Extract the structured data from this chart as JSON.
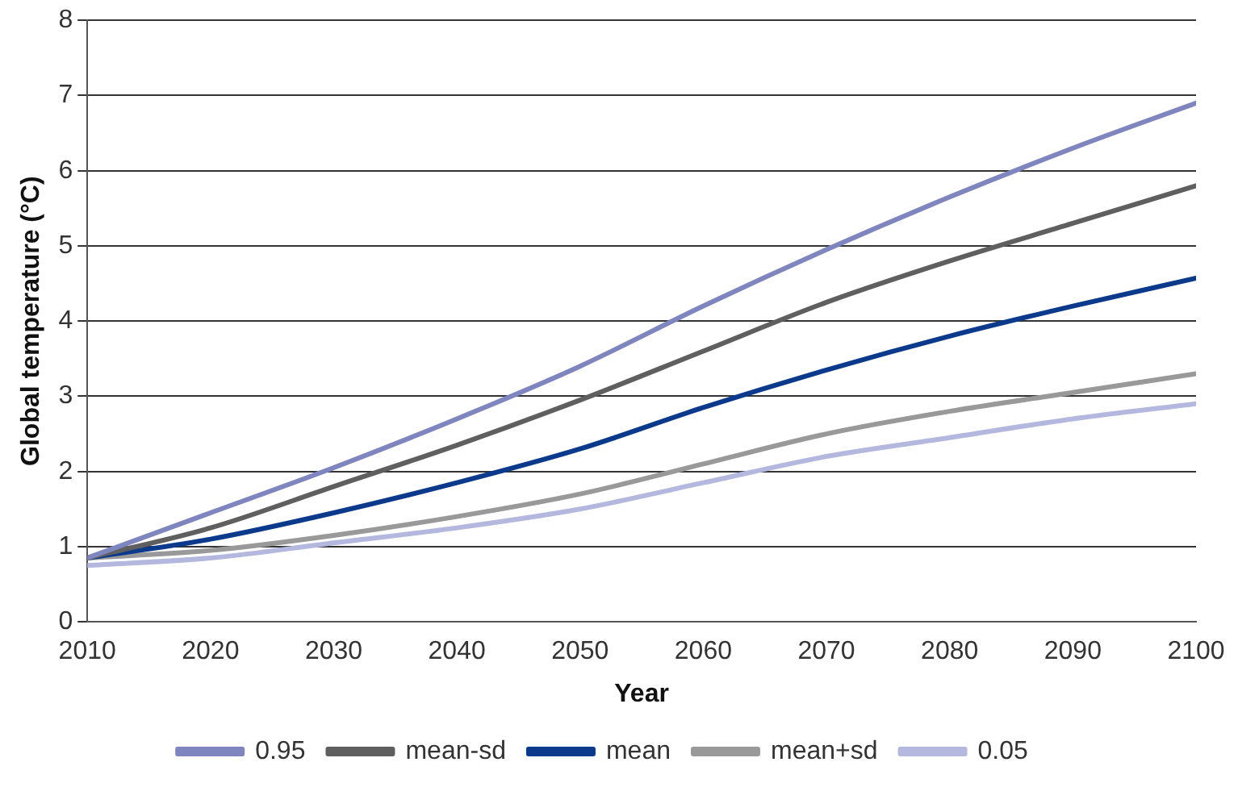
{
  "chart_data": {
    "type": "line",
    "xlabel": "Year",
    "ylabel": "Global temperature (°C)",
    "x": [
      2010,
      2020,
      2030,
      2040,
      2050,
      2060,
      2070,
      2080,
      2090,
      2100
    ],
    "xlim": [
      2010,
      2100
    ],
    "xticks": [
      2010,
      2020,
      2030,
      2040,
      2050,
      2060,
      2070,
      2080,
      2090,
      2100
    ],
    "ylim": [
      0,
      8
    ],
    "yticks": [
      0,
      1,
      2,
      3,
      4,
      5,
      6,
      7,
      8
    ],
    "grid": "y",
    "legend": "bottom",
    "marker": "none",
    "line_style": "solid",
    "series": [
      {
        "name": "0.95",
        "color": "#7f86bf",
        "values": [
          0.85,
          1.45,
          2.05,
          2.7,
          3.4,
          4.2,
          4.95,
          5.65,
          6.3,
          6.9
        ]
      },
      {
        "name": "mean-sd",
        "color": "#5f5f5f",
        "values": [
          0.85,
          1.25,
          1.8,
          2.35,
          2.95,
          3.6,
          4.25,
          4.8,
          5.3,
          5.8
        ]
      },
      {
        "name": "mean",
        "color": "#0b3a8c",
        "values": [
          0.85,
          1.1,
          1.45,
          1.85,
          2.3,
          2.85,
          3.35,
          3.8,
          4.2,
          4.57
        ]
      },
      {
        "name": "mean+sd",
        "color": "#999999",
        "values": [
          0.85,
          0.95,
          1.15,
          1.4,
          1.7,
          2.1,
          2.5,
          2.8,
          3.05,
          3.3
        ]
      },
      {
        "name": "0.05",
        "color": "#b4b8de",
        "values": [
          0.75,
          0.85,
          1.05,
          1.25,
          1.5,
          1.85,
          2.2,
          2.45,
          2.7,
          2.9
        ]
      }
    ]
  }
}
